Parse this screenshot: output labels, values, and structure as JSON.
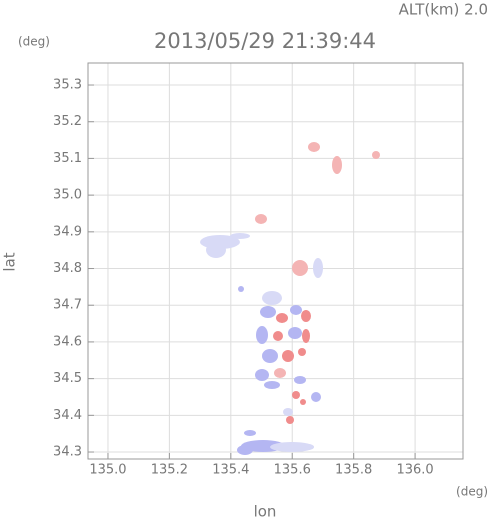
{
  "chart_data": {
    "type": "map",
    "title": "2013/05/29 21:39:44",
    "altitude_label": "ALT(km) 2.0",
    "x_label": "lon",
    "y_label": "lat",
    "x_unit": "(deg)",
    "y_unit": "(deg)",
    "xlim": [
      134.935,
      136.156
    ],
    "ylim": [
      34.281,
      35.36
    ],
    "xticks": [
      {
        "value": 135,
        "label": "135.0"
      },
      135.2,
      135.4,
      135.6,
      135.8,
      {
        "value": 136,
        "label": "136.0"
      }
    ],
    "yticks": [
      34.3,
      34.4,
      34.5,
      34.6,
      34.7,
      34.8,
      34.9,
      {
        "value": 35,
        "label": "35.0"
      },
      35.1,
      35.2,
      35.3
    ],
    "grid": true
  }
}
